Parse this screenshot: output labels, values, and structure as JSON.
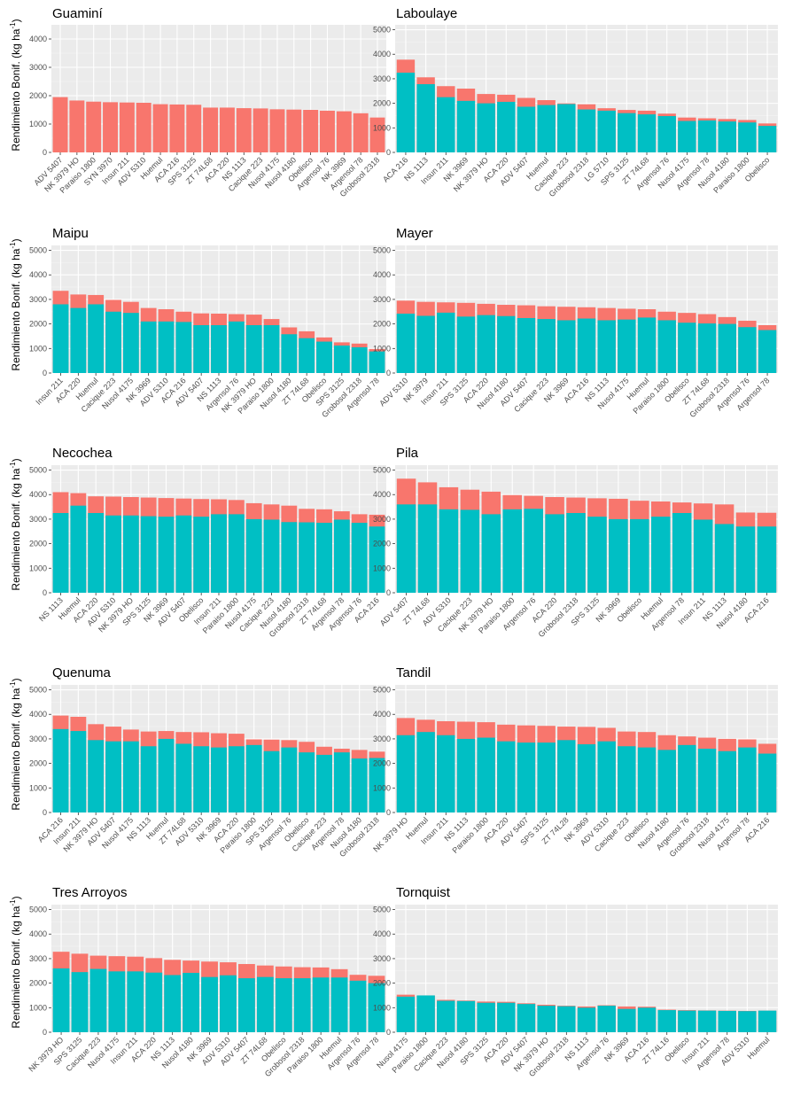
{
  "colors": {
    "total": "#f8766d",
    "base": "#00bfc4",
    "panel_bg": "#ebebeb",
    "grid_major": "#ffffff",
    "grid_minor": "#f5f5f5",
    "tick_text": "#4d4d4d"
  },
  "ylabel_text": "Rendimiento Bonif. (kg ha",
  "ylabel_sup": "-1",
  "ylabel_close": ")",
  "chart_data": [
    {
      "type": "bar",
      "title": "Guaminí",
      "ylim": [
        0,
        4500
      ],
      "yticks": [
        0,
        1000,
        2000,
        3000,
        4000
      ],
      "categories": [
        "ADV 5407",
        "NK 3979 HO",
        "Paraiso 1800",
        "SYN 3970",
        "Insun 211",
        "ADV 5310",
        "Huemul",
        "ACA 216",
        "SPS 3125",
        "ZT 74L68",
        "ACA 220",
        "NS 1113",
        "Cacique 223",
        "Nusol 4175",
        "Nusol 4180",
        "Obelisco",
        "Argensol 76",
        "NK 3969",
        "Argensol 78",
        "Grobosol 2318"
      ],
      "series": [
        {
          "name": "total",
          "values": [
            1950,
            1830,
            1790,
            1770,
            1760,
            1750,
            1700,
            1690,
            1680,
            1580,
            1580,
            1560,
            1550,
            1520,
            1510,
            1500,
            1470,
            1450,
            1380,
            1230
          ]
        }
      ]
    },
    {
      "type": "bar",
      "title": "Laboulaye",
      "ylim": [
        0,
        5200
      ],
      "yticks": [
        0,
        1000,
        2000,
        3000,
        4000,
        5000
      ],
      "categories": [
        "ACA 216",
        "NS 1113",
        "Insun 211",
        "NK 3969",
        "NK 3979 HO",
        "ACA 220",
        "ADV 5407",
        "Huemul",
        "Cacique 223",
        "Grobosol 2318",
        "LG 5710",
        "SPS 3125",
        "ZT 74L68",
        "Argensol 76",
        "Nusol 4175",
        "Argensol 78",
        "Nusol 4180",
        "Paraiso 1800",
        "Obelisco"
      ],
      "series": [
        {
          "name": "total",
          "values": [
            3780,
            3060,
            2700,
            2600,
            2380,
            2350,
            2220,
            2130,
            2000,
            1960,
            1800,
            1730,
            1700,
            1580,
            1420,
            1390,
            1360,
            1320,
            1180
          ]
        },
        {
          "name": "base",
          "values": [
            3250,
            2780,
            2250,
            2100,
            2000,
            2060,
            1860,
            1930,
            1970,
            1750,
            1700,
            1600,
            1550,
            1480,
            1280,
            1300,
            1260,
            1220,
            1080
          ]
        }
      ]
    },
    {
      "type": "bar",
      "title": "Maipu",
      "ylim": [
        0,
        5200
      ],
      "yticks": [
        0,
        1000,
        2000,
        3000,
        4000,
        5000
      ],
      "categories": [
        "Insun 211",
        "ACA 220",
        "Huemul",
        "Cacique 223",
        "Nusol 4175",
        "NK 3969",
        "ADV 5310",
        "ACA 216",
        "ADV 5407",
        "NS 1113",
        "Argensol 76",
        "NK 3979 HO",
        "Paraiso 1800",
        "Nusol 4180",
        "ZT 74L68",
        "Obelisco",
        "SPS 3125",
        "Grobosol 2318",
        "Argensol 78"
      ],
      "series": [
        {
          "name": "total",
          "values": [
            3350,
            3200,
            3180,
            2980,
            2900,
            2650,
            2600,
            2500,
            2430,
            2420,
            2400,
            2380,
            2200,
            1860,
            1700,
            1450,
            1250,
            1200,
            980
          ]
        },
        {
          "name": "base",
          "values": [
            2800,
            2650,
            2800,
            2500,
            2450,
            2100,
            2100,
            2080,
            1950,
            1950,
            2100,
            1950,
            1950,
            1580,
            1420,
            1280,
            1120,
            1050,
            880
          ]
        }
      ]
    },
    {
      "type": "bar",
      "title": "Mayer",
      "ylim": [
        0,
        5200
      ],
      "yticks": [
        0,
        1000,
        2000,
        3000,
        4000,
        5000
      ],
      "categories": [
        "ADV 5310",
        "NK 3979",
        "Insun 211",
        "SPS 3125",
        "ACA 220",
        "Nusol 4180",
        "ADV 5407",
        "Cacique 223",
        "NK 3969",
        "ACA 216",
        "NS 1113",
        "Nusol 4175",
        "Huemul",
        "Paraiso 1800",
        "Obelisco",
        "ZT 74L68",
        "Grobosol 2318",
        "Argensol 76",
        "Argensol 78"
      ],
      "series": [
        {
          "name": "total",
          "values": [
            2950,
            2900,
            2880,
            2860,
            2820,
            2780,
            2760,
            2720,
            2700,
            2680,
            2650,
            2620,
            2600,
            2500,
            2450,
            2400,
            2280,
            2130,
            1950
          ]
        },
        {
          "name": "base",
          "values": [
            2420,
            2330,
            2460,
            2300,
            2360,
            2320,
            2240,
            2200,
            2150,
            2220,
            2150,
            2180,
            2260,
            2150,
            2050,
            2020,
            2000,
            1870,
            1750
          ]
        }
      ]
    },
    {
      "type": "bar",
      "title": "Necochea",
      "ylim": [
        0,
        5200
      ],
      "yticks": [
        0,
        1000,
        2000,
        3000,
        4000,
        5000
      ],
      "categories": [
        "NS 1113",
        "Huemul",
        "ACA 220",
        "ADV 5310",
        "NK 3979 HO",
        "SPS 3125",
        "NK 3969",
        "ADV 5407",
        "Obelisco",
        "Insun 211",
        "Paraiso 1800",
        "Nusol 4175",
        "Cacique 223",
        "Nusol 4180",
        "Grobosol 2318",
        "ZT 74L68",
        "Argensol 78",
        "Argensol 76",
        "ACA 216"
      ],
      "series": [
        {
          "name": "total",
          "values": [
            4100,
            4060,
            3930,
            3920,
            3900,
            3880,
            3860,
            3840,
            3820,
            3810,
            3780,
            3650,
            3600,
            3550,
            3420,
            3400,
            3320,
            3200,
            3180
          ]
        },
        {
          "name": "base",
          "values": [
            3250,
            3550,
            3250,
            3150,
            3150,
            3120,
            3100,
            3150,
            3100,
            3200,
            3200,
            3000,
            2980,
            2880,
            2870,
            2850,
            2980,
            2850,
            2700
          ]
        }
      ]
    },
    {
      "type": "bar",
      "title": "Pila",
      "ylim": [
        0,
        5200
      ],
      "yticks": [
        0,
        1000,
        2000,
        3000,
        4000,
        5000
      ],
      "categories": [
        "ADV 5407",
        "ZT 74L68",
        "ADV 5310",
        "Cacique 223",
        "NK 3979 HO",
        "Paraiso 1800",
        "Argensol 76",
        "ACA 220",
        "Grobosol 2318",
        "SPS 3125",
        "NK 3969",
        "Obelisco",
        "Huemul",
        "Argensol 78",
        "Insun 211",
        "NS 1113",
        "Nusol 4180",
        "ACA 216"
      ],
      "series": [
        {
          "name": "total",
          "values": [
            4650,
            4500,
            4300,
            4200,
            4120,
            3980,
            3950,
            3900,
            3880,
            3850,
            3830,
            3750,
            3720,
            3680,
            3640,
            3600,
            3270,
            3260
          ]
        },
        {
          "name": "base",
          "values": [
            3600,
            3600,
            3400,
            3380,
            3200,
            3400,
            3420,
            3200,
            3250,
            3100,
            3000,
            3000,
            3100,
            3250,
            2980,
            2800,
            2700,
            2700
          ]
        }
      ]
    },
    {
      "type": "bar",
      "title": "Quenuma",
      "ylim": [
        0,
        5200
      ],
      "yticks": [
        0,
        1000,
        2000,
        3000,
        4000,
        5000
      ],
      "categories": [
        "ACA 216",
        "Insun 211",
        "NK 3979 HO",
        "ADV 5407",
        "Nusol 4175",
        "NS 1113",
        "Huemul",
        "ZT 74L68",
        "ADV 5310",
        "NK 3969",
        "ACA 220",
        "Paraiso 1800",
        "SPS 3125",
        "Argensol 76",
        "Obelisco",
        "Cacique 223",
        "Argensol 78",
        "Nusol 4180",
        "Grobosol 2318"
      ],
      "series": [
        {
          "name": "total",
          "values": [
            3950,
            3900,
            3600,
            3500,
            3380,
            3300,
            3320,
            3280,
            3270,
            3230,
            3210,
            2980,
            2970,
            2950,
            2880,
            2680,
            2600,
            2550,
            2480
          ]
        },
        {
          "name": "base",
          "values": [
            3400,
            3320,
            2950,
            2900,
            2900,
            2700,
            3000,
            2800,
            2700,
            2650,
            2700,
            2750,
            2500,
            2650,
            2450,
            2350,
            2450,
            2200,
            2220
          ]
        }
      ]
    },
    {
      "type": "bar",
      "title": "Tandil",
      "ylim": [
        0,
        5200
      ],
      "yticks": [
        0,
        1000,
        2000,
        3000,
        4000,
        5000
      ],
      "categories": [
        "NK 3979 HO",
        "Huemul",
        "Insun 211",
        "NS 1113",
        "Paraiso 1800",
        "ACA 220",
        "ADV 5407",
        "SPS 3125",
        "ZT 74L28",
        "NK 3969",
        "ADV 5310",
        "Cacique 223",
        "Obelisco",
        "Nusol 4180",
        "Argensol 76",
        "Grobosol 2318",
        "Nusol 4175",
        "Argensol 78",
        "ACA 216"
      ],
      "series": [
        {
          "name": "total",
          "values": [
            3850,
            3780,
            3720,
            3700,
            3680,
            3580,
            3550,
            3530,
            3500,
            3490,
            3450,
            3300,
            3280,
            3150,
            3100,
            3050,
            3000,
            2980,
            2800
          ]
        },
        {
          "name": "base",
          "values": [
            3150,
            3280,
            3150,
            3000,
            3050,
            2900,
            2850,
            2850,
            2950,
            2780,
            2900,
            2700,
            2650,
            2550,
            2750,
            2600,
            2500,
            2650,
            2400
          ]
        }
      ]
    },
    {
      "type": "bar",
      "title": "Tres Arroyos",
      "ylim": [
        0,
        5200
      ],
      "yticks": [
        0,
        1000,
        2000,
        3000,
        4000,
        5000
      ],
      "categories": [
        "NK 3979 HO",
        "SPS 3125",
        "Cacique 223",
        "Nusol 4175",
        "Insun 211",
        "ACA 220",
        "NS 1113",
        "Nusol 4180",
        "NK 3969",
        "ADV 5310",
        "ADV 5407",
        "ZT 74L68",
        "Obelisco",
        "Grobosol 2318",
        "Paraiso 1800",
        "Huemul",
        "Argensol 76",
        "Argensol 78"
      ],
      "series": [
        {
          "name": "total",
          "values": [
            3280,
            3200,
            3120,
            3100,
            3080,
            3020,
            2950,
            2920,
            2880,
            2850,
            2780,
            2720,
            2680,
            2650,
            2640,
            2570,
            2340,
            2300
          ]
        },
        {
          "name": "base",
          "values": [
            2600,
            2450,
            2580,
            2480,
            2480,
            2430,
            2330,
            2420,
            2250,
            2320,
            2200,
            2250,
            2200,
            2200,
            2230,
            2230,
            2100,
            2000
          ]
        }
      ]
    },
    {
      "type": "bar",
      "title": "Tornquist",
      "ylim": [
        0,
        5200
      ],
      "yticks": [
        0,
        1000,
        2000,
        3000,
        4000,
        5000
      ],
      "categories": [
        "Nusol 4175",
        "Paraiso 1800",
        "Cacique 223",
        "Nusol 4180",
        "SPS 3125",
        "ACA 220",
        "ADV 5407",
        "NK 3979 HO",
        "Grobosol 2318",
        "NS 1113",
        "Argensol 76",
        "NK 3969",
        "ACA 216",
        "ZT 74L16",
        "Obelisco",
        "Insun 211",
        "Argensol 78",
        "ADV 5310",
        "Huemul"
      ],
      "series": [
        {
          "name": "total",
          "values": [
            1530,
            1500,
            1320,
            1290,
            1250,
            1240,
            1180,
            1120,
            1080,
            1050,
            1100,
            1050,
            1040,
            920,
            900,
            890,
            880,
            870,
            880
          ]
        },
        {
          "name": "base",
          "values": [
            1450,
            1500,
            1280,
            1270,
            1200,
            1200,
            1150,
            1080,
            1060,
            1000,
            1080,
            950,
            1000,
            900,
            880,
            880,
            870,
            860,
            880
          ]
        }
      ]
    }
  ]
}
